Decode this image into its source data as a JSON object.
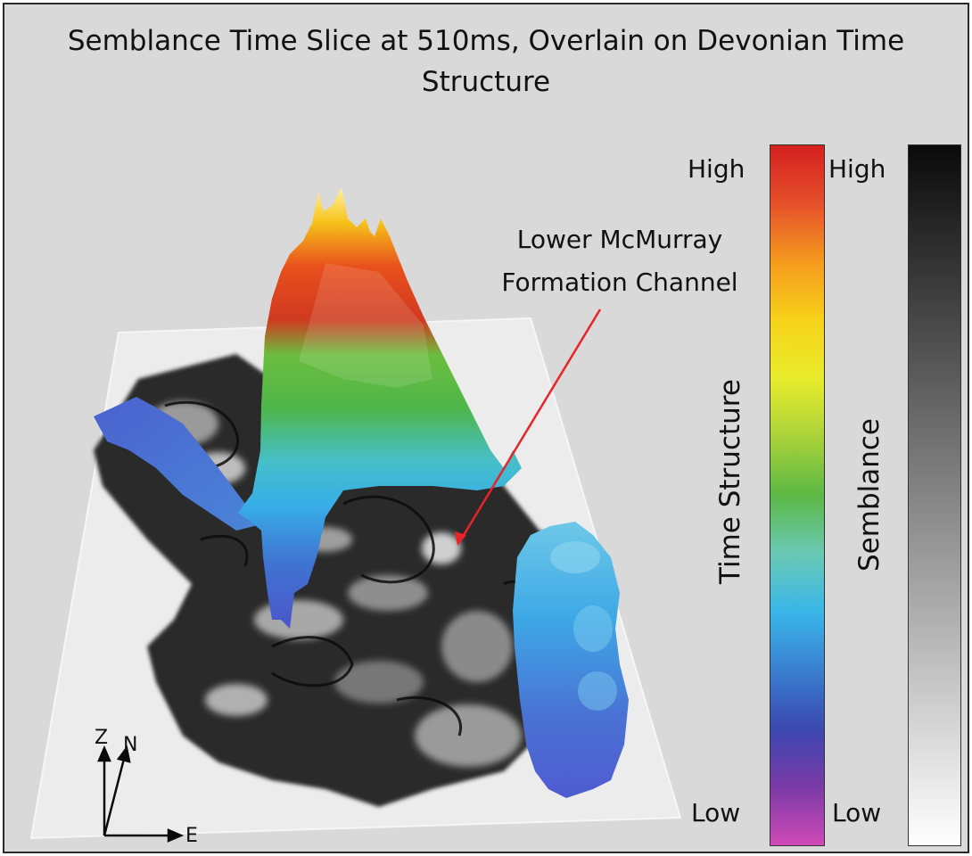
{
  "title": "Semblance Time Slice at 510ms, Overlain on Devonian Time Structure",
  "annotation": {
    "text_line1": "Lower McMurray",
    "text_line2": "Formation Channel",
    "arrow_color": "#e8242a"
  },
  "time_structure_bar": {
    "label": "Time Structure",
    "high_label": "High",
    "low_label": "Low",
    "colors_top_to_bottom": [
      "#d42020",
      "#e5502a",
      "#f59a1e",
      "#f7d21a",
      "#e8ec2c",
      "#a9d23a",
      "#5cb845",
      "#6ac9b4",
      "#39b6e8",
      "#3a7fcf",
      "#3b48b0",
      "#7a3aa6",
      "#d04ab7"
    ]
  },
  "semblance_bar": {
    "label": "Semblance",
    "high_label": "High",
    "low_label": "Low",
    "colors_top_to_bottom": [
      "#0a0a0a",
      "#ffffff"
    ]
  },
  "compass": {
    "z_label": "Z",
    "n_label": "N",
    "e_label": "E"
  }
}
